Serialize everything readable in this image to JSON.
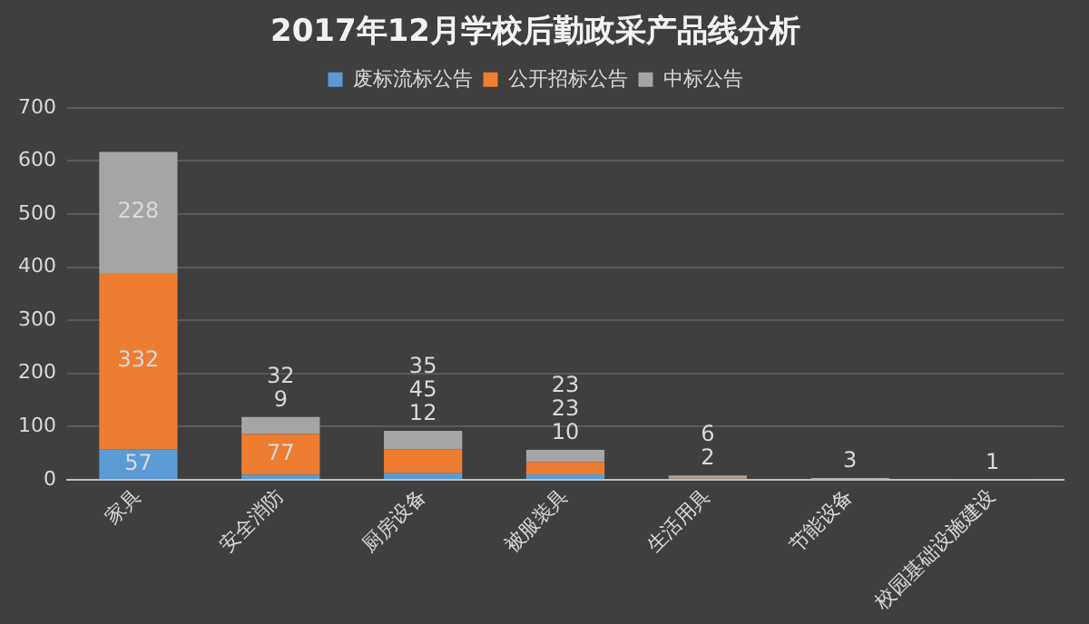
{
  "chart_data": {
    "type": "bar",
    "title": "2017年12月学校后勤政采产品线分析",
    "categories": [
      "家具",
      "安全消防",
      "厨房设备",
      "被服装具",
      "生活用具",
      "节能设备",
      "校园基础设施建设"
    ],
    "series": [
      {
        "name": "废标流标公告",
        "color": "#5b9bd5",
        "values": [
          57,
          9,
          12,
          10,
          null,
          null,
          null
        ]
      },
      {
        "name": "公开招标公告",
        "color": "#ed7d31",
        "values": [
          332,
          77,
          45,
          23,
          2,
          null,
          null
        ]
      },
      {
        "name": "中标公告",
        "color": "#a5a5a5",
        "values": [
          228,
          32,
          35,
          23,
          6,
          3,
          1
        ]
      }
    ],
    "stacked": true,
    "ylim": [
      0,
      700
    ],
    "yticks": [
      0,
      100,
      200,
      300,
      400,
      500,
      600,
      700
    ],
    "grid": "y",
    "legend": "top",
    "data_labels": true
  }
}
